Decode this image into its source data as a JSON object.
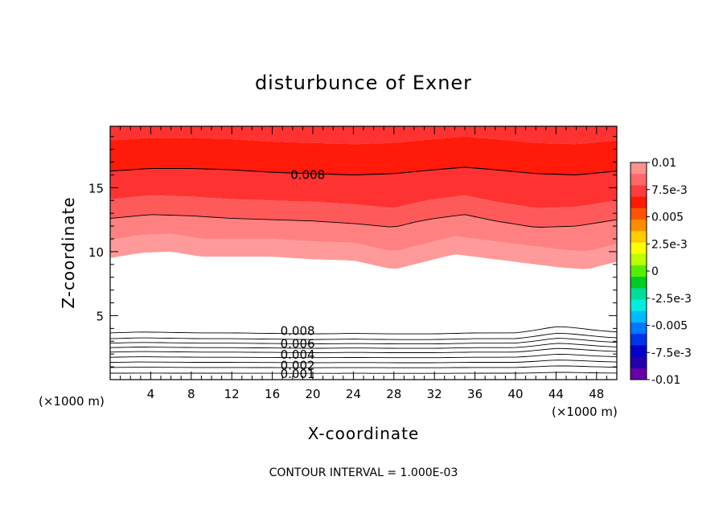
{
  "chart_data": {
    "type": "heatmap",
    "title": "disturbunce of Exner",
    "xlabel": "X-coordinate",
    "ylabel": "Z-coordinate",
    "x_unit_left": "(×1000 m)",
    "x_unit_right": "(×1000 m)",
    "x_ticks": [
      "4",
      "8",
      "12",
      "16",
      "20",
      "24",
      "28",
      "32",
      "36",
      "40",
      "44",
      "48"
    ],
    "x_tick_values": [
      4,
      8,
      12,
      16,
      20,
      24,
      28,
      32,
      36,
      40,
      44,
      48
    ],
    "y_ticks": [
      "5",
      "10",
      "15"
    ],
    "y_tick_values": [
      5,
      10,
      15
    ],
    "xlim": [
      0,
      50
    ],
    "ylim": [
      0,
      19.8
    ],
    "grid": false,
    "colorbar": {
      "labels": [
        "0.01",
        "7.5e-3",
        "0.005",
        "2.5e-3",
        "0",
        "-2.5e-3",
        "-0.005",
        "-7.5e-3",
        "-0.01"
      ],
      "values": [
        0.01,
        0.0075,
        0.005,
        0.0025,
        0,
        -0.0025,
        -0.005,
        -0.0075,
        -0.01
      ],
      "range": [
        -0.01,
        0.01
      ]
    },
    "contour_labels": [
      {
        "text": "0.008",
        "x": 19.5,
        "y": 16.0
      },
      {
        "text": "0.008",
        "x": 18.5,
        "y": 3.8
      },
      {
        "text": "0.006",
        "x": 18.5,
        "y": 2.8
      },
      {
        "text": "0.004",
        "x": 18.5,
        "y": 1.95
      },
      {
        "text": "0.002",
        "x": 18.5,
        "y": 1.1
      },
      {
        "text": "0.001",
        "x": 18.5,
        "y": 0.45
      }
    ],
    "contour_interval_note": "CONTOUR INTERVAL = 1.000E-03",
    "upper_band": {
      "white_bottom_profile": {
        "x": [
          0,
          3,
          6,
          9,
          12,
          16,
          20,
          24,
          28,
          32,
          34,
          36,
          40,
          44,
          47,
          50
        ],
        "z": [
          4.8,
          4.9,
          4.85,
          4.8,
          4.8,
          4.75,
          4.7,
          4.75,
          4.7,
          4.7,
          4.75,
          4.8,
          4.8,
          5.2,
          5.1,
          4.9
        ]
      },
      "white_top_profile": {
        "x": [
          0,
          3,
          6,
          9,
          12,
          16,
          20,
          24,
          28,
          32,
          34,
          36,
          40,
          44,
          47,
          50
        ],
        "z": [
          9.5,
          9.9,
          10.0,
          9.6,
          9.6,
          9.6,
          9.4,
          9.3,
          8.6,
          9.4,
          9.8,
          9.6,
          9.2,
          8.8,
          8.6,
          9.2
        ]
      },
      "contour_008_profile": {
        "x": [
          0,
          4,
          8,
          12,
          16,
          20,
          24,
          28,
          32,
          35,
          38,
          42,
          46,
          50
        ],
        "z": [
          16.3,
          16.5,
          16.5,
          16.4,
          16.2,
          16.1,
          16.0,
          16.1,
          16.4,
          16.6,
          16.4,
          16.1,
          16.0,
          16.3
        ]
      },
      "contour_0075_profile": {
        "x": [
          0,
          4,
          8,
          12,
          16,
          20,
          24,
          28,
          30,
          32,
          35,
          38,
          42,
          46,
          50
        ],
        "z": [
          12.6,
          12.9,
          12.8,
          12.6,
          12.5,
          12.4,
          12.2,
          11.9,
          12.3,
          12.6,
          12.9,
          12.4,
          11.9,
          12.0,
          12.5
        ]
      }
    },
    "colors": {
      "lightest": "#ff9a9a",
      "light": "#ff8080",
      "mid": "#ff5a5a",
      "red": "#ff3232",
      "deep_red": "#ff1a0a",
      "orange_red": "#ff4400",
      "orange": "#ff8800",
      "gold": "#ffcc00",
      "yellow": "#ffff00",
      "yellow_green": "#bbff00",
      "green": "#33dd00",
      "bright_green": "#00cc00",
      "cb_colors": [
        "#ff9090",
        "#ff6868",
        "#ff3c3c",
        "#ff1a00",
        "#ff5500",
        "#ff8c00",
        "#ffcc00",
        "#ffff00",
        "#bbff00",
        "#55ee00",
        "#00cc22",
        "#00dd99",
        "#00eedd",
        "#00bbff",
        "#0077ff",
        "#0033ee",
        "#0000cc",
        "#2200aa",
        "#6600aa"
      ]
    }
  }
}
